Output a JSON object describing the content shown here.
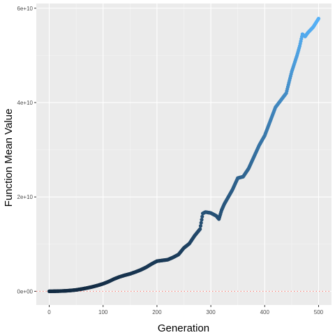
{
  "chart_data": {
    "type": "scatter",
    "xlabel": "Generation",
    "ylabel": "Function Mean Value",
    "xlim": [
      -24,
      524
    ],
    "ylim": [
      -2900000000.0,
      61000000000.0
    ],
    "x_ticks": [
      0,
      100,
      200,
      300,
      400,
      500
    ],
    "x_tick_labels": [
      "0",
      "100",
      "200",
      "300",
      "400",
      "500"
    ],
    "y_ticks": [
      0,
      20000000000,
      40000000000,
      60000000000
    ],
    "y_tick_labels": [
      "0e+00",
      "2e+10",
      "4e+10",
      "6e+10"
    ],
    "grid": true,
    "reference_line": {
      "y": 0,
      "color": "#f8766d",
      "style": "dotted"
    },
    "color_gradient": {
      "low": "#132b43",
      "high": "#56b1f7"
    },
    "series": [
      {
        "x": [
          0,
          10,
          20,
          30,
          40,
          50,
          60,
          70,
          80,
          90,
          100,
          110,
          120,
          130,
          140,
          150,
          160,
          170,
          180,
          190,
          200,
          210,
          220,
          230,
          240,
          250,
          260,
          270,
          280,
          285,
          290,
          295,
          300,
          305,
          310,
          315,
          320,
          325,
          330,
          340,
          350,
          360,
          370,
          380,
          390,
          400,
          410,
          420,
          430,
          440,
          450,
          460,
          465,
          470,
          475,
          480,
          490,
          500
        ],
        "y": [
          0,
          20000000,
          50000000,
          100000000,
          180000000,
          300000000,
          480000000,
          700000000,
          950000000,
          1250000000,
          1600000000,
          2050000000,
          2600000000,
          3050000000,
          3400000000,
          3700000000,
          4100000000,
          4550000000,
          5100000000,
          5800000000,
          6400000000,
          6550000000,
          6700000000,
          7200000000,
          7800000000,
          9200000000,
          10100000000,
          11800000000,
          13200000000,
          16500000000,
          16800000000,
          16700000000,
          16600000000,
          16300000000,
          16000000000,
          15300000000,
          17200000000,
          18500000000,
          19500000000,
          21500000000,
          24000000000,
          24300000000,
          26000000000,
          28500000000,
          31000000000,
          33000000000,
          36000000000,
          39000000000,
          40500000000,
          42000000000,
          46500000000,
          50000000000,
          52000000000,
          54500000000,
          54000000000,
          54800000000,
          56000000000,
          57800000000
        ]
      }
    ]
  }
}
